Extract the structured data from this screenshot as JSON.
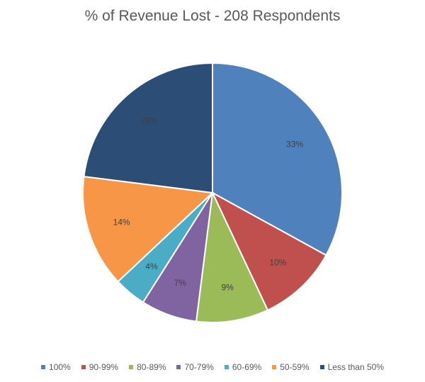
{
  "chart_data": {
    "type": "pie",
    "title": "% of Revenue Lost - 208 Respondents",
    "categories": [
      "100%",
      "90-99%",
      "80-89%",
      "70-79%",
      "60-69%",
      "50-59%",
      "Less than 50%"
    ],
    "values": [
      33,
      10,
      9,
      7,
      4,
      14,
      23
    ],
    "data_labels": [
      "33%",
      "10%",
      "9%",
      "7%",
      "4%",
      "14%",
      "23%"
    ],
    "colors": [
      "#4f81bd",
      "#c0504d",
      "#9bbb59",
      "#8064a2",
      "#4bacc6",
      "#f79646",
      "#2c4d75"
    ],
    "legend_position": "bottom",
    "start_angle": "12 o'clock",
    "direction": "clockwise"
  }
}
